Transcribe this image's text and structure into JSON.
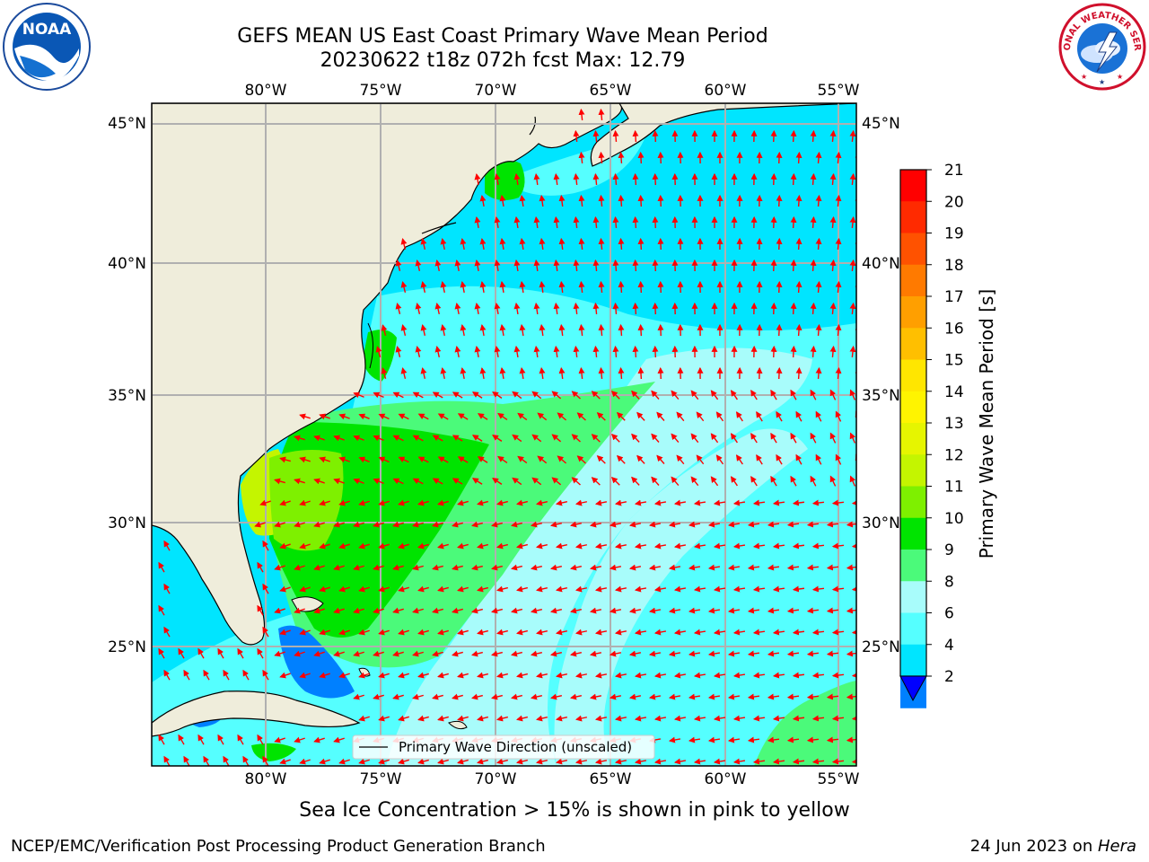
{
  "title": {
    "line1": "GEFS MEAN US East Coast Primary Wave Mean Period",
    "line2": "20230622 t18z 072h fcst   Max: 12.79"
  },
  "map": {
    "lon_labels": [
      "80°W",
      "75°W",
      "70°W",
      "65°W",
      "60°W",
      "55°W"
    ],
    "lat_labels": [
      "45°N",
      "40°N",
      "35°N",
      "30°N",
      "25°N"
    ],
    "legend_label": "Primary Wave Direction (unscaled)",
    "colors": {
      "land": "#efeddb",
      "ocean_cyan": "#00e5ff",
      "ocean_lightcyan": "#55ffff",
      "ocean_paleblue": "#a8fcfb",
      "green_light": "#4bfa7a",
      "green": "#00e400",
      "green_yellow": "#7ef000",
      "blue": "#0080ff",
      "arrow": "#ff0000",
      "grid": "#b0b0b0"
    }
  },
  "colorbar": {
    "label": "Primary Wave Mean Period [s]",
    "ticks": [
      "21",
      "20",
      "19",
      "18",
      "17",
      "16",
      "15",
      "14",
      "13",
      "12",
      "11",
      "10",
      "9",
      "8",
      "6",
      "4",
      "2"
    ],
    "colors": [
      "#ff0000",
      "#ff2a00",
      "#ff5200",
      "#ff7a00",
      "#ff9f00",
      "#ffbf00",
      "#ffe600",
      "#fff400",
      "#e6f500",
      "#c4f500",
      "#7ef000",
      "#00e400",
      "#4bfa7a",
      "#a8fcfb",
      "#55ffff",
      "#00e5ff",
      "#0080ff"
    ],
    "extend_color": "#0000ff"
  },
  "caption": "Sea Ice Concentration > 15% is shown in pink to yellow",
  "footer": {
    "left": "NCEP/EMC/Verification Post Processing Product Generation Branch",
    "right_prefix": "24 Jun 2023 on ",
    "right_machine": "Hera"
  },
  "logos": {
    "noaa_text": "NOAA",
    "nws_text": "NATIONAL WEATHER SERVICE"
  }
}
